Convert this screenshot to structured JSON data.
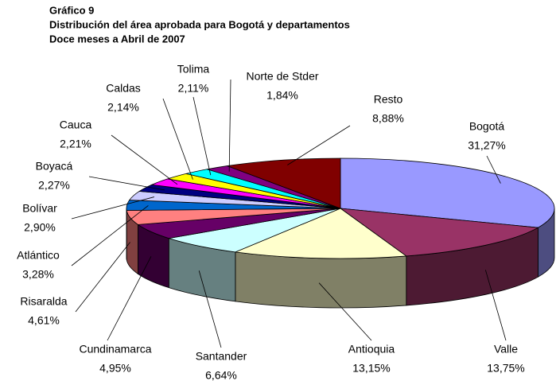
{
  "chart_data": {
    "type": "pie3d",
    "title": "Gráfico 9",
    "subtitle": [
      "Distribución del área aprobada para Bogotá y departamentos",
      "Doce meses a Abril de 2007"
    ],
    "categories": [
      "Bogotá",
      "Valle",
      "Antioquia",
      "Santander",
      "Cundinamarca",
      "Risaralda",
      "Atlántico",
      "Bolívar",
      "Boyacá",
      "Cauca",
      "Caldas",
      "Tolima",
      "Norte de Stder",
      "Resto"
    ],
    "values": [
      31.27,
      13.75,
      13.15,
      6.64,
      4.95,
      4.61,
      3.28,
      2.9,
      2.27,
      2.21,
      2.14,
      2.11,
      1.84,
      8.88
    ],
    "value_labels": [
      "31,27%",
      "13,75%",
      "13,15%",
      "6,64%",
      "4,95%",
      "4,61%",
      "3,28%",
      "2,90%",
      "2,27%",
      "2,21%",
      "2,14%",
      "2,11%",
      "1,84%",
      "8,88%"
    ],
    "colors": [
      "#9999ff",
      "#993366",
      "#ffffcc",
      "#ccffff",
      "#660066",
      "#ff8080",
      "#0066cc",
      "#ccccff",
      "#000080",
      "#ff00ff",
      "#ffff00",
      "#00ffff",
      "#800080",
      "#800000"
    ]
  }
}
